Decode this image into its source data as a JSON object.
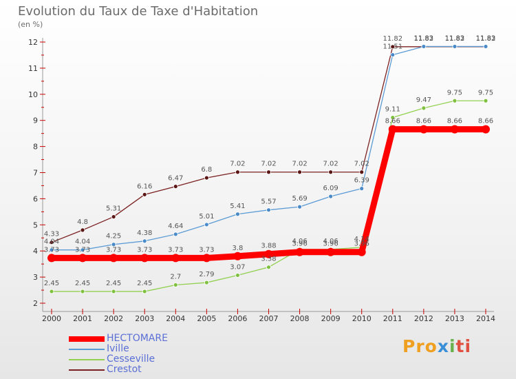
{
  "title": "Evolution du Taux de Taxe d'Habitation",
  "subtitle": "(en %)",
  "brand": {
    "p1": "Pro",
    "p2": "x",
    "p3": "i",
    "p4": "ti",
    "colors": [
      "#f0a020",
      "#3a8fd6",
      "#6ab04c",
      "#e05040"
    ]
  },
  "chart_data": {
    "type": "line",
    "title": "Evolution du Taux de Taxe d'Habitation",
    "ylabel": "(en %)",
    "xlabel": "",
    "x": [
      2000,
      2001,
      2002,
      2003,
      2004,
      2005,
      2006,
      2007,
      2008,
      2009,
      2010,
      2011,
      2012,
      2013,
      2014
    ],
    "ylim": [
      2,
      12
    ],
    "yticks": [
      2,
      3,
      4,
      5,
      6,
      7,
      8,
      9,
      10,
      11,
      12
    ],
    "grid": false,
    "legend": "bottom-left",
    "series": [
      {
        "name": "HECTOMARE",
        "color": "#ff0000",
        "values": [
          3.73,
          3.73,
          3.73,
          3.73,
          3.73,
          3.73,
          3.8,
          3.88,
          3.96,
          3.96,
          3.96,
          8.66,
          8.66,
          8.66,
          8.66
        ]
      },
      {
        "name": "Iville",
        "color": "#5b9bd5",
        "values": [
          4.04,
          4.04,
          4.25,
          4.38,
          4.64,
          5.01,
          5.41,
          5.57,
          5.69,
          6.09,
          6.39,
          11.51,
          11.83,
          11.83,
          11.83
        ]
      },
      {
        "name": "Cesseville",
        "color": "#92d050",
        "values": [
          2.45,
          2.45,
          2.45,
          2.45,
          2.7,
          2.79,
          3.07,
          3.38,
          4.06,
          4.06,
          4.14,
          9.11,
          9.47,
          9.75,
          9.75
        ]
      },
      {
        "name": "Crestot",
        "color": "#7b2020",
        "values": [
          4.33,
          4.8,
          5.31,
          6.16,
          6.47,
          6.8,
          7.02,
          7.02,
          7.02,
          7.02,
          7.02,
          11.82,
          11.82,
          11.82,
          11.82
        ]
      }
    ]
  }
}
